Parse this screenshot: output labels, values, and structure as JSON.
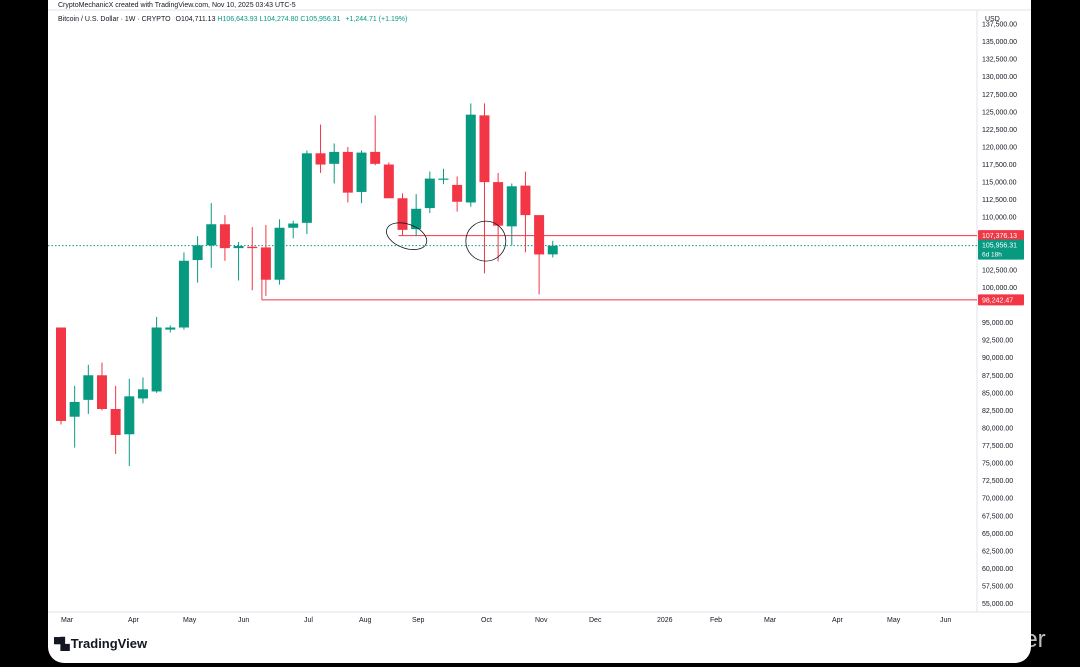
{
  "header": {
    "author_line": "CryptoMechanicX created with TradingView.com, Nov 10, 2025 03:43 UTC-5",
    "symbol": "Bitcoin / U.S. Dollar · 1W · CRYPTO",
    "open": "O104,711.13",
    "high": "H106,643.93",
    "low": "L104,274.80",
    "close": "C105,956.31",
    "change": "+1,244.71 (+1.19%)",
    "currency": "USD"
  },
  "colors": {
    "up": "#089981",
    "down": "#f23645",
    "grid": "#e0e3eb",
    "text": "#131722"
  },
  "price_tags": {
    "resistance": "107,376.13",
    "current": "105,956.31",
    "countdown": "6d 18h",
    "support": "98,242.47"
  },
  "branding": {
    "logo_text": "TradingView",
    "watermark": "@Venomous Trader"
  },
  "chart_data": {
    "type": "candlestick",
    "title": "Bitcoin / U.S. Dollar · 1W · CRYPTO",
    "y_axis_side": "right",
    "ylim": [
      53800,
      139500
    ],
    "y_ticks": [
      "137,500.00",
      "135,000.00",
      "132,500.00",
      "130,000.00",
      "127,500.00",
      "125,000.00",
      "122,500.00",
      "120,000.00",
      "117,500.00",
      "115,000.00",
      "112,500.00",
      "110,000.00",
      "102,500.00",
      "100,000.00",
      "95,000.00",
      "92,500.00",
      "90,000.00",
      "87,500.00",
      "85,000.00",
      "82,500.00",
      "80,000.00",
      "77,500.00",
      "75,000.00",
      "72,500.00",
      "70,000.00",
      "67,500.00",
      "65,000.00",
      "62,500.00",
      "60,000.00",
      "57,500.00",
      "55,000.00"
    ],
    "x_labels": [
      "Mar",
      "Apr",
      "May",
      "Jun",
      "Jul",
      "Aug",
      "Sep",
      "Oct",
      "Nov",
      "Dec",
      "2026",
      "Feb",
      "Mar",
      "Apr",
      "May",
      "Jun"
    ],
    "horizontal_lines": [
      {
        "price": 107376.13,
        "color": "#f23645",
        "style": "solid",
        "from_week": 25
      },
      {
        "price": 105956.31,
        "color": "#089981",
        "style": "dotted",
        "from_week": 0
      },
      {
        "price": 98242.47,
        "color": "#f23645",
        "style": "solid",
        "from_week": 15
      }
    ],
    "ellipses": [
      {
        "week": 25.3,
        "price": 107300
      },
      {
        "week": 31.1,
        "price": 106600
      }
    ],
    "candles": [
      {
        "o": 94300,
        "h": 94300,
        "l": 80500,
        "c": 81000
      },
      {
        "o": 81600,
        "h": 86000,
        "l": 77200,
        "c": 83700
      },
      {
        "o": 84000,
        "h": 89000,
        "l": 82000,
        "c": 87500
      },
      {
        "o": 87500,
        "h": 89300,
        "l": 82500,
        "c": 82700
      },
      {
        "o": 82700,
        "h": 86000,
        "l": 76300,
        "c": 79000
      },
      {
        "o": 79100,
        "h": 87000,
        "l": 74600,
        "c": 84500
      },
      {
        "o": 84200,
        "h": 87200,
        "l": 83500,
        "c": 85500
      },
      {
        "o": 85200,
        "h": 95800,
        "l": 85000,
        "c": 94300
      },
      {
        "o": 94000,
        "h": 94600,
        "l": 93600,
        "c": 94300
      },
      {
        "o": 94300,
        "h": 105000,
        "l": 94000,
        "c": 103800
      },
      {
        "o": 103900,
        "h": 107300,
        "l": 100700,
        "c": 106000
      },
      {
        "o": 106000,
        "h": 112000,
        "l": 102800,
        "c": 109000
      },
      {
        "o": 109000,
        "h": 110300,
        "l": 103800,
        "c": 105600
      },
      {
        "o": 105600,
        "h": 106500,
        "l": 101000,
        "c": 105900
      },
      {
        "o": 105800,
        "h": 108600,
        "l": 99600,
        "c": 105600
      },
      {
        "o": 105700,
        "h": 108900,
        "l": 98800,
        "c": 101100
      },
      {
        "o": 101100,
        "h": 109700,
        "l": 100400,
        "c": 108500
      },
      {
        "o": 108500,
        "h": 109500,
        "l": 107000,
        "c": 109100
      },
      {
        "o": 109200,
        "h": 119500,
        "l": 107600,
        "c": 119100
      },
      {
        "o": 119100,
        "h": 123200,
        "l": 116300,
        "c": 117500
      },
      {
        "o": 117600,
        "h": 120500,
        "l": 114800,
        "c": 119300
      },
      {
        "o": 119300,
        "h": 120000,
        "l": 112100,
        "c": 113500
      },
      {
        "o": 113600,
        "h": 119500,
        "l": 112000,
        "c": 119200
      },
      {
        "o": 119300,
        "h": 124500,
        "l": 117400,
        "c": 117600
      },
      {
        "o": 117500,
        "h": 117800,
        "l": 112700,
        "c": 112700
      },
      {
        "o": 112700,
        "h": 113400,
        "l": 107400,
        "c": 108200
      },
      {
        "o": 108300,
        "h": 113300,
        "l": 107300,
        "c": 111200
      },
      {
        "o": 111300,
        "h": 116500,
        "l": 110600,
        "c": 115500
      },
      {
        "o": 115500,
        "h": 116900,
        "l": 114700,
        "c": 115500
      },
      {
        "o": 114600,
        "h": 115800,
        "l": 110800,
        "c": 112200
      },
      {
        "o": 112100,
        "h": 126200,
        "l": 111500,
        "c": 124600
      },
      {
        "o": 124500,
        "h": 126200,
        "l": 102000,
        "c": 115000
      },
      {
        "o": 115000,
        "h": 116300,
        "l": 103700,
        "c": 108800
      },
      {
        "o": 108700,
        "h": 114800,
        "l": 106000,
        "c": 114400
      },
      {
        "o": 114500,
        "h": 116500,
        "l": 105000,
        "c": 110300
      },
      {
        "o": 110300,
        "h": 110300,
        "l": 99000,
        "c": 104700
      },
      {
        "o": 104711.13,
        "h": 106643.93,
        "l": 104274.8,
        "c": 105956.31
      }
    ]
  }
}
